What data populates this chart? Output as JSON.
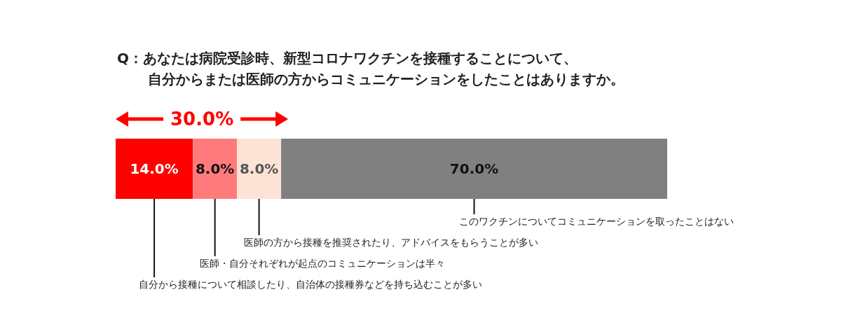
{
  "chart_data": {
    "type": "bar",
    "orientation": "horizontal",
    "stacked": true,
    "title": "Q：あなたは病院受診時、新型コロナワクチンを接種することについて、",
    "subtitle": "自分からまたは医師の方からコミュニケーションをしたことはありますか。",
    "categories": [
      null
    ],
    "series": [
      {
        "name": "自分から接種について相談したり、自治体の接種券などを持ち込むことが多い",
        "color": "#ff0000",
        "values": [
          14.0
        ],
        "value_labels": [
          "14.0%"
        ]
      },
      {
        "name": "医師・自分それぞれが起点のコミュニケーションは半々",
        "color": "#ff7b7b",
        "values": [
          8.0
        ],
        "value_labels": [
          "8.0%"
        ]
      },
      {
        "name": "医師の方から接種を推奨されたり、アドバイスをもらうことが多い",
        "color": "#fde3d6",
        "values": [
          8.0
        ],
        "value_labels": [
          "8.0%"
        ]
      },
      {
        "name": "このワクチンについてコミュニケーションを取ったことはない",
        "color": "#808080",
        "values": [
          70.0
        ],
        "value_labels": [
          "70.0%"
        ]
      }
    ],
    "annotations": [
      "30.0%"
    ],
    "xlim": [
      0,
      100
    ],
    "tick_labels": false
  }
}
